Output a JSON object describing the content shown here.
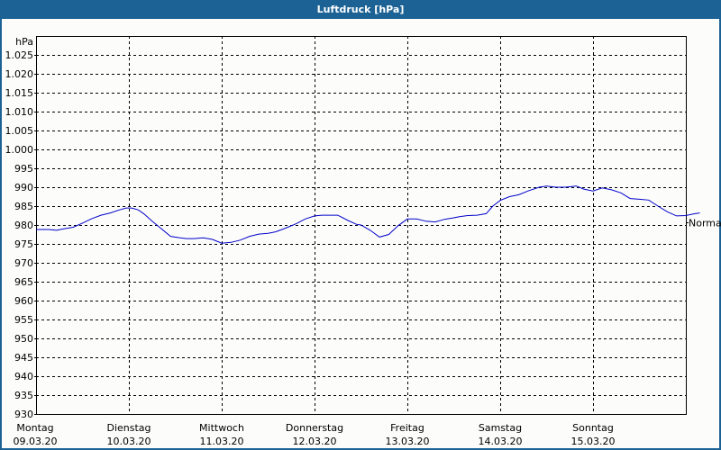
{
  "window": {
    "title": "Luftdruck [hPa]"
  },
  "chart_data": {
    "type": "line",
    "title": "Luftdruck [hPa]",
    "xlabel": "",
    "ylabel": "hPa",
    "ylim": [
      930,
      1030
    ],
    "yticks": [
      930,
      935,
      940,
      945,
      950,
      955,
      960,
      965,
      970,
      975,
      980,
      985,
      990,
      995,
      1000,
      1005,
      1010,
      1015,
      1020,
      1025
    ],
    "ytick_labels": [
      "930",
      "935",
      "940",
      "945",
      "950",
      "955",
      "960",
      "965",
      "970",
      "975",
      "980",
      "985",
      "990",
      "995",
      "1.000",
      "1.005",
      "1.010",
      "1.015",
      "1.020",
      "1.025"
    ],
    "x_categories": [
      {
        "day": "Montag",
        "date": "09.03.20"
      },
      {
        "day": "Dienstag",
        "date": "10.03.20"
      },
      {
        "day": "Mittwoch",
        "date": "11.03.20"
      },
      {
        "day": "Donnerstag",
        "date": "12.03.20"
      },
      {
        "day": "Freitag",
        "date": "13.03.20"
      },
      {
        "day": "Samstag",
        "date": "14.03.20"
      },
      {
        "day": "Sonntag",
        "date": "15.03.20"
      }
    ],
    "grid": true,
    "reference_marker": {
      "label": "Normal",
      "value": 980.7
    },
    "series": [
      {
        "name": "Luftdruck",
        "color": "#0000c8",
        "x_days": [
          0.0,
          0.07,
          0.14,
          0.22,
          0.3,
          0.4,
          0.5,
          0.6,
          0.7,
          0.8,
          0.9,
          0.97,
          1.03,
          1.1,
          1.16,
          1.25,
          1.35,
          1.45,
          1.55,
          1.62,
          1.7,
          1.8,
          1.9,
          2.0,
          2.1,
          2.2,
          2.3,
          2.4,
          2.5,
          2.58,
          2.65,
          2.72,
          2.8,
          2.9,
          3.0,
          3.08,
          3.15,
          3.25,
          3.35,
          3.45,
          3.5,
          3.6,
          3.7,
          3.8,
          3.9,
          4.0,
          4.1,
          4.2,
          4.3,
          4.4,
          4.48,
          4.56,
          4.65,
          4.75,
          4.85,
          4.92,
          5.0,
          5.1,
          5.2,
          5.3,
          5.42,
          5.5,
          5.6,
          5.7,
          5.82,
          5.9,
          6.0,
          6.1,
          6.2,
          6.3,
          6.4,
          6.5,
          6.6,
          6.7,
          6.8,
          6.9,
          7.0,
          7.1,
          7.15
        ],
        "values": [
          978.8,
          978.8,
          978.8,
          978.6,
          979.0,
          979.4,
          980.5,
          981.7,
          982.6,
          983.2,
          984.0,
          984.5,
          984.5,
          984.0,
          983.0,
          981.0,
          979.0,
          977.0,
          976.6,
          976.4,
          976.4,
          976.6,
          976.2,
          975.2,
          975.4,
          976.0,
          977.0,
          977.6,
          977.8,
          978.2,
          978.8,
          979.5,
          980.3,
          981.6,
          982.4,
          982.6,
          982.6,
          982.6,
          981.3,
          980.2,
          980.0,
          978.6,
          976.8,
          977.5,
          979.8,
          981.6,
          981.6,
          981.0,
          980.8,
          981.5,
          981.8,
          982.2,
          982.5,
          982.6,
          983.0,
          985.0,
          986.5,
          987.5,
          988.0,
          989.0,
          990.0,
          990.3,
          990.0,
          990.0,
          990.3,
          989.5,
          989.0,
          989.8,
          989.3,
          988.5,
          987.0,
          986.8,
          986.6,
          985.0,
          983.5,
          982.4,
          982.5,
          983.0,
          983.2
        ]
      }
    ]
  }
}
